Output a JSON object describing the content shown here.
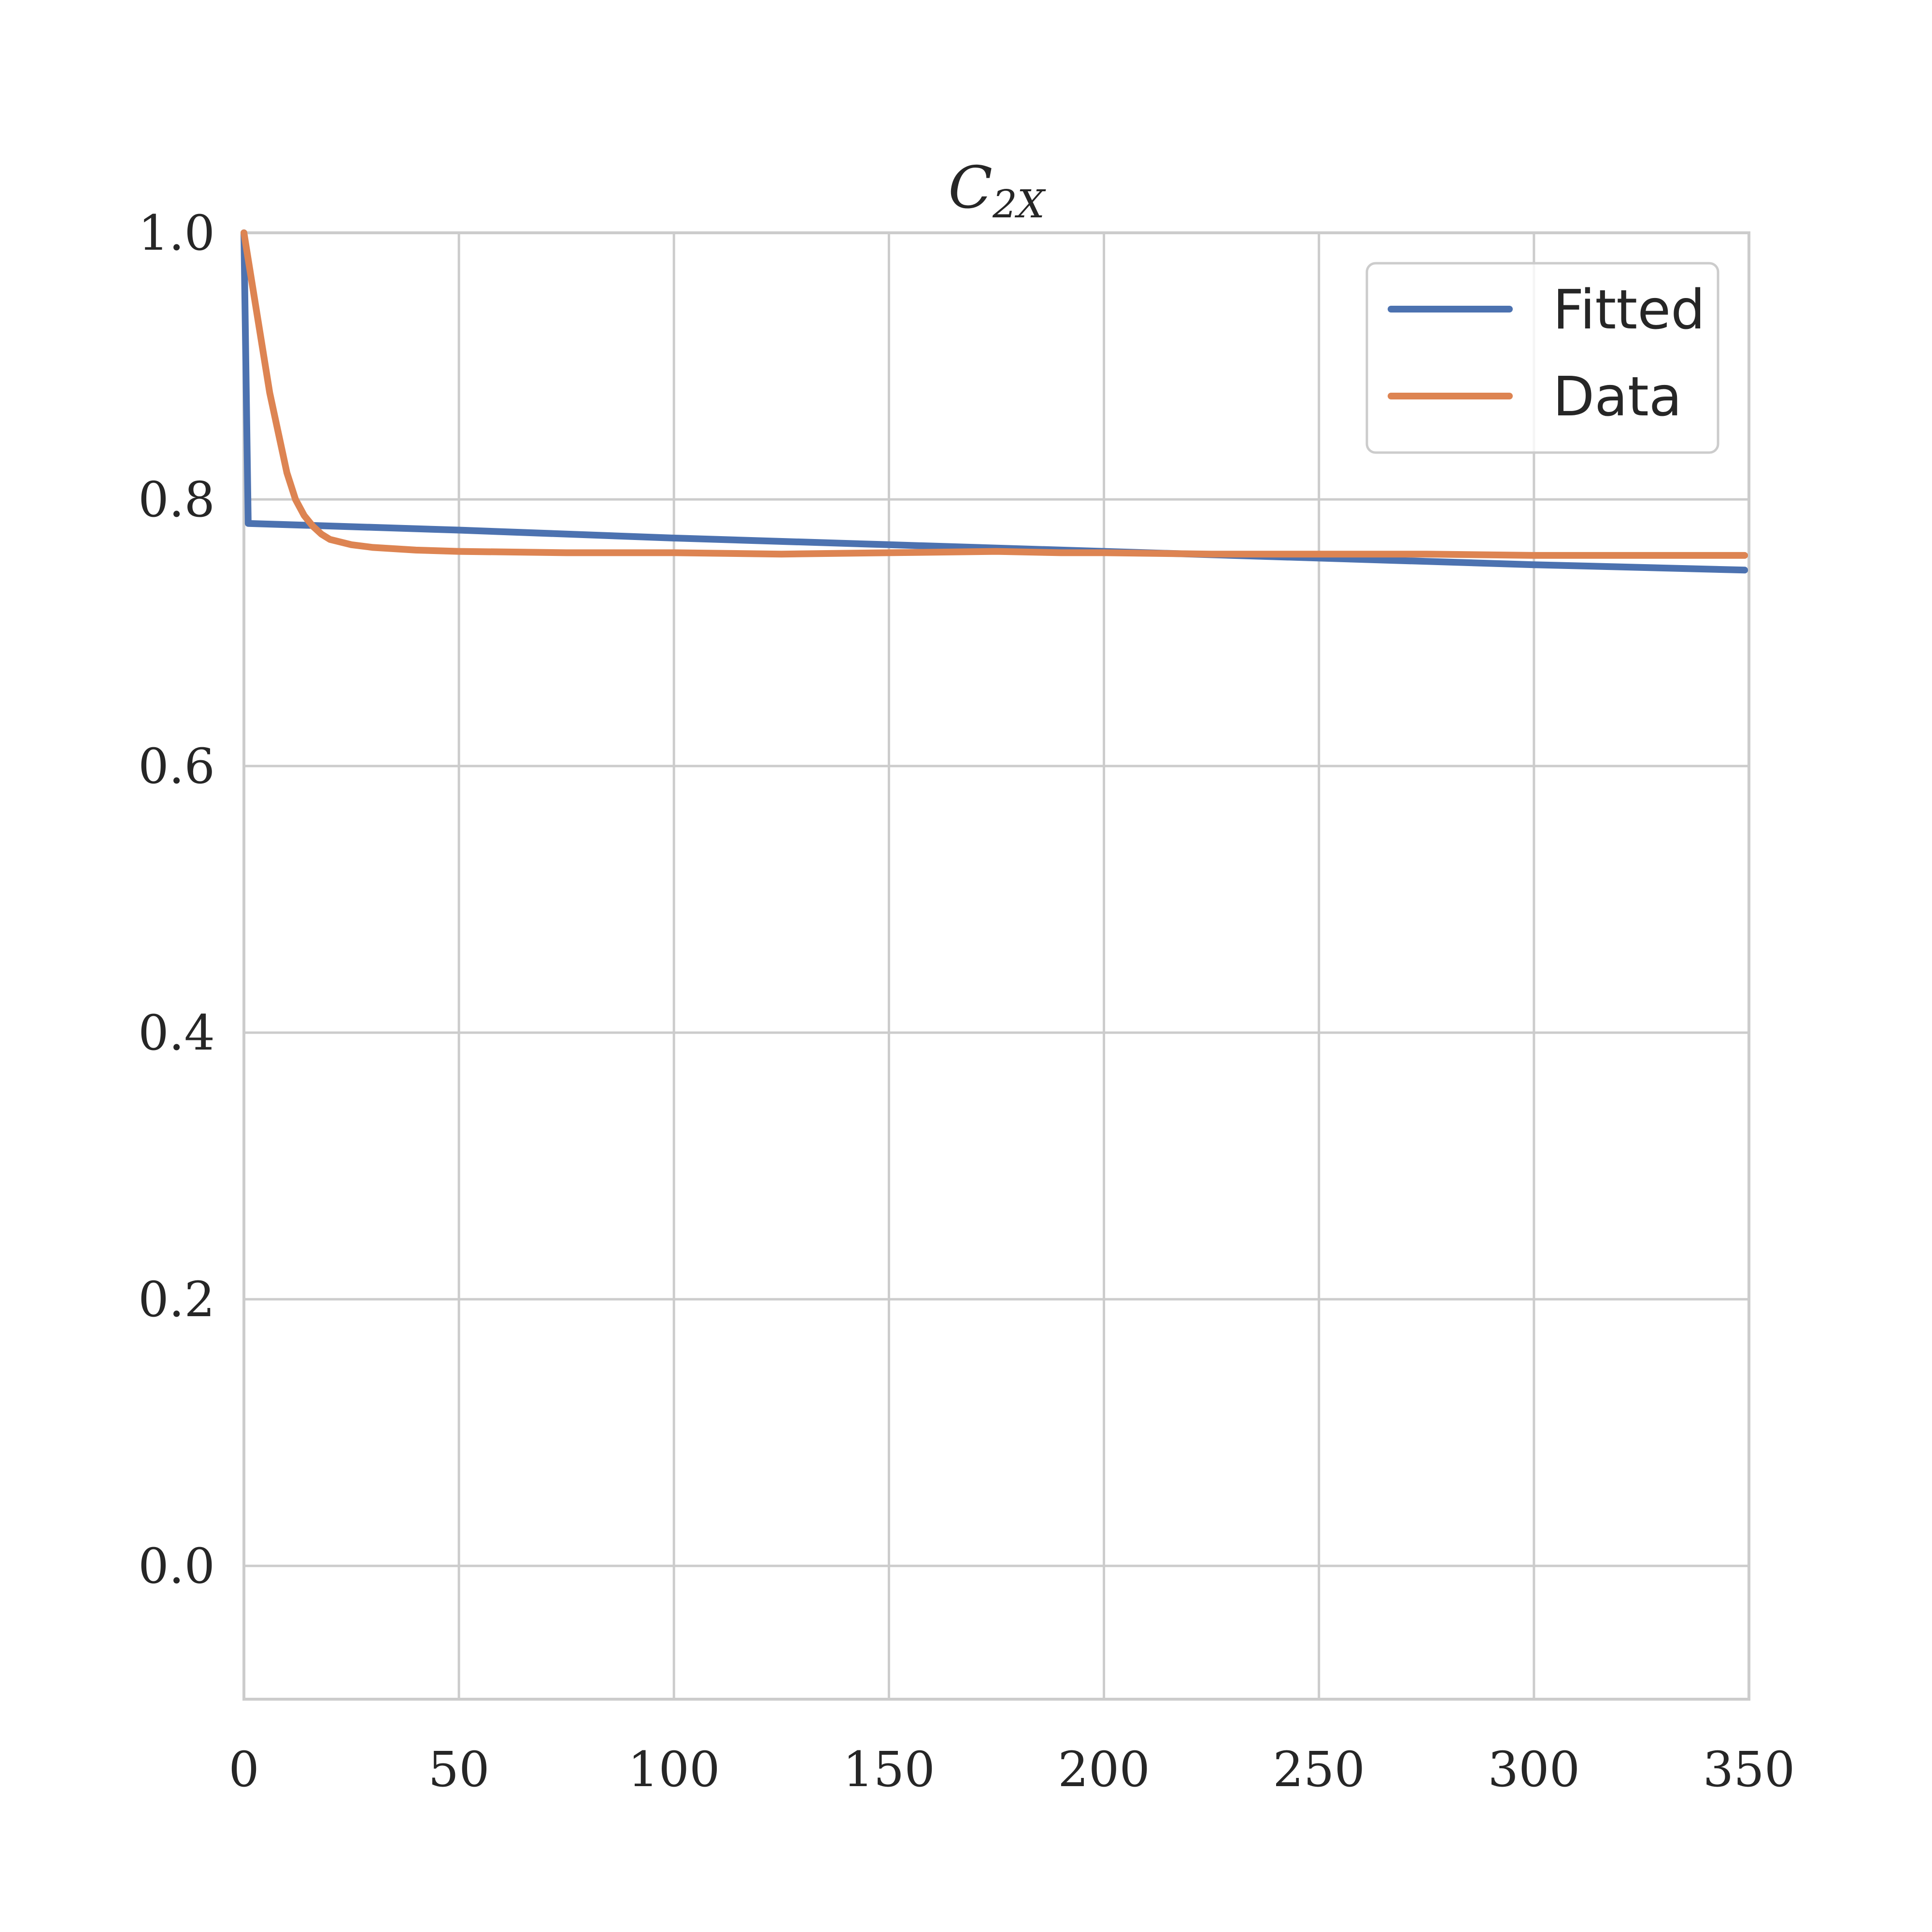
{
  "chart_data": {
    "type": "line",
    "title_main": "C",
    "title_sub": "2X",
    "xlim": [
      0,
      350
    ],
    "ylim": [
      -0.1,
      1.0
    ],
    "x_ticks": [
      0,
      50,
      100,
      150,
      200,
      250,
      300,
      350
    ],
    "x_tick_labels": [
      "0",
      "50",
      "100",
      "150",
      "200",
      "250",
      "300",
      "350"
    ],
    "y_ticks": [
      0.0,
      0.2,
      0.4,
      0.6,
      0.8,
      1.0
    ],
    "y_tick_labels": [
      "0.0",
      "0.2",
      "0.4",
      "0.6",
      "0.8",
      "1.0"
    ],
    "grid": true,
    "legend_position": "top-right",
    "series": [
      {
        "name": "Fitted",
        "color": "#4c72b0",
        "points": [
          [
            0,
            1.0
          ],
          [
            1,
            0.782
          ],
          [
            50,
            0.777
          ],
          [
            100,
            0.771
          ],
          [
            150,
            0.766
          ],
          [
            200,
            0.761
          ],
          [
            250,
            0.756
          ],
          [
            300,
            0.751
          ],
          [
            349,
            0.747
          ]
        ]
      },
      {
        "name": "Data",
        "color": "#dd8452",
        "points": [
          [
            0,
            1.0
          ],
          [
            2,
            0.96
          ],
          [
            4,
            0.92
          ],
          [
            6,
            0.88
          ],
          [
            8,
            0.85
          ],
          [
            10,
            0.82
          ],
          [
            12,
            0.8
          ],
          [
            14,
            0.788
          ],
          [
            16,
            0.78
          ],
          [
            18,
            0.774
          ],
          [
            20,
            0.77
          ],
          [
            25,
            0.766
          ],
          [
            30,
            0.764
          ],
          [
            40,
            0.762
          ],
          [
            50,
            0.761
          ],
          [
            75,
            0.76
          ],
          [
            100,
            0.76
          ],
          [
            125,
            0.759
          ],
          [
            150,
            0.76
          ],
          [
            175,
            0.761
          ],
          [
            190,
            0.76
          ],
          [
            200,
            0.76
          ],
          [
            225,
            0.759
          ],
          [
            250,
            0.759
          ],
          [
            275,
            0.759
          ],
          [
            300,
            0.758
          ],
          [
            325,
            0.758
          ],
          [
            349,
            0.758
          ]
        ]
      }
    ]
  }
}
